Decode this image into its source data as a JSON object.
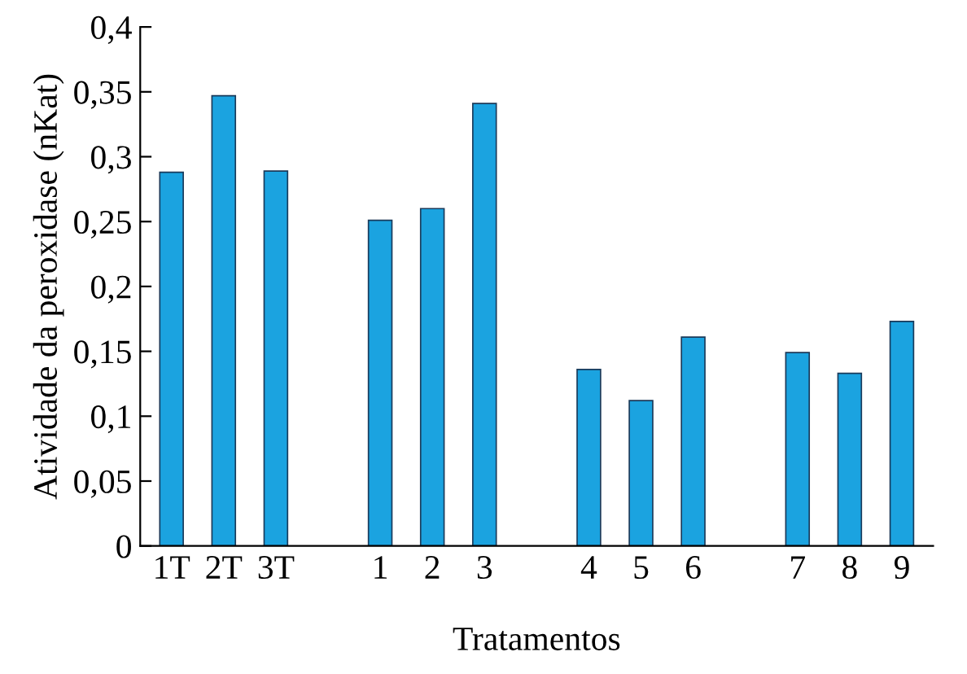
{
  "chart_data": {
    "type": "bar",
    "categories": [
      "1T",
      "2T",
      "3T",
      null,
      "1",
      "2",
      "3",
      null,
      "4",
      "5",
      "6",
      null,
      "7",
      "8",
      "9"
    ],
    "values": [
      0.288,
      0.347,
      0.289,
      null,
      0.251,
      0.26,
      0.341,
      null,
      0.136,
      0.112,
      0.161,
      null,
      0.149,
      0.133,
      0.173
    ],
    "color": "#1ba3e0",
    "xlabel": "Tratamentos",
    "ylabel": "Atividade da peroxidase (nKat)",
    "ylim": [
      0,
      0.4
    ],
    "yticks": [
      0,
      {
        "value": 0.05,
        "label": "0,05"
      },
      {
        "value": 0.1,
        "label": "0,1"
      },
      {
        "value": 0.15,
        "label": "0,15"
      },
      {
        "value": 0.2,
        "label": "0,2"
      },
      {
        "value": 0.25,
        "label": "0,25"
      },
      {
        "value": 0.3,
        "label": "0,3"
      },
      {
        "value": 0.35,
        "label": "0,35"
      },
      {
        "value": 0.4,
        "label": "0,4"
      }
    ],
    "grid": false,
    "legend": false
  }
}
